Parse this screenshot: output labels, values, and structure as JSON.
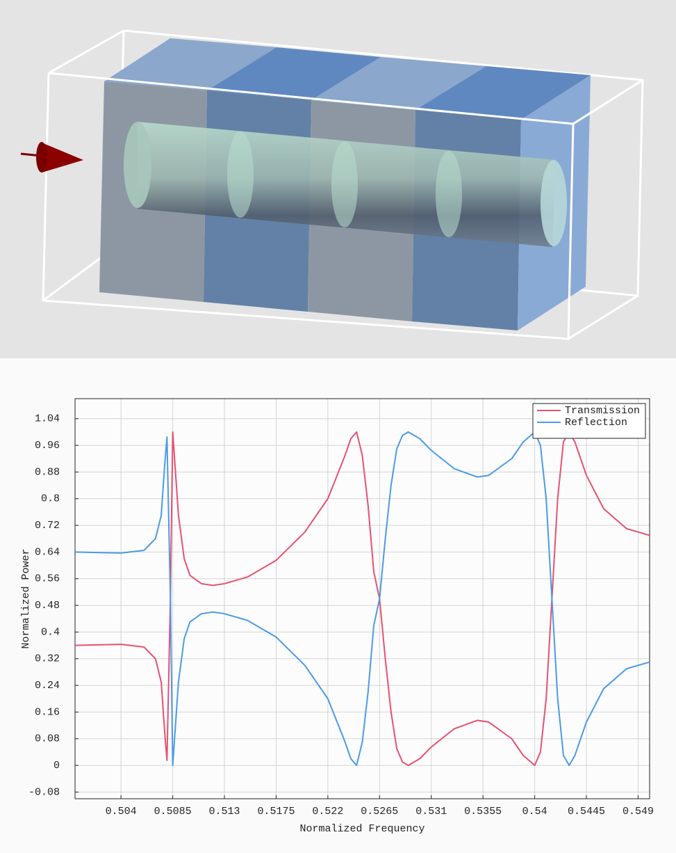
{
  "chart_data": {
    "type": "line",
    "xlabel": "Normalized Frequency",
    "ylabel": "Normalized Power",
    "x": [
      0.5,
      0.504,
      0.506,
      0.507,
      0.5075,
      0.5078,
      0.508,
      0.5083,
      0.5085,
      0.509,
      0.5095,
      0.51,
      0.511,
      0.512,
      0.513,
      0.515,
      0.5175,
      0.52,
      0.522,
      0.5235,
      0.524,
      0.5245,
      0.525,
      0.5255,
      0.526,
      0.5265,
      0.527,
      0.5275,
      0.528,
      0.5285,
      0.529,
      0.53,
      0.531,
      0.533,
      0.535,
      0.536,
      0.538,
      0.539,
      0.54,
      0.5405,
      0.541,
      0.5415,
      0.542,
      0.5425,
      0.543,
      0.5435,
      0.5445,
      0.546,
      0.548,
      0.55
    ],
    "series": [
      {
        "name": "Transmission",
        "color": "#e8506e",
        "values": [
          0.36,
          0.363,
          0.355,
          0.32,
          0.25,
          0.1,
          0.015,
          0.5,
          1.0,
          0.75,
          0.62,
          0.57,
          0.545,
          0.54,
          0.545,
          0.565,
          0.615,
          0.7,
          0.8,
          0.93,
          0.98,
          1.0,
          0.93,
          0.78,
          0.58,
          0.5,
          0.32,
          0.16,
          0.05,
          0.01,
          0.0,
          0.02,
          0.055,
          0.11,
          0.135,
          0.13,
          0.08,
          0.03,
          0.0,
          0.04,
          0.2,
          0.5,
          0.8,
          0.97,
          1.0,
          0.97,
          0.87,
          0.77,
          0.71,
          0.69
        ]
      },
      {
        "name": "Reflection",
        "color": "#4a9ae8",
        "values": [
          0.64,
          0.637,
          0.645,
          0.68,
          0.75,
          0.9,
          0.985,
          0.5,
          0.0,
          0.25,
          0.38,
          0.43,
          0.455,
          0.46,
          0.455,
          0.435,
          0.385,
          0.3,
          0.2,
          0.07,
          0.02,
          0.0,
          0.07,
          0.22,
          0.42,
          0.5,
          0.68,
          0.84,
          0.95,
          0.99,
          1.0,
          0.98,
          0.945,
          0.89,
          0.865,
          0.87,
          0.92,
          0.97,
          1.0,
          0.96,
          0.8,
          0.5,
          0.2,
          0.03,
          0.0,
          0.03,
          0.13,
          0.23,
          0.29,
          0.31
        ]
      }
    ],
    "xlim": [
      0.5,
      0.55
    ],
    "xticks": [
      0.504,
      0.5085,
      0.513,
      0.5175,
      0.522,
      0.5265,
      0.531,
      0.5355,
      0.54,
      0.5445,
      0.549
    ],
    "ylim": [
      -0.1,
      1.1
    ],
    "yticks": [
      -0.08,
      0,
      0.08,
      0.16,
      0.24,
      0.32,
      0.4,
      0.48,
      0.56,
      0.64,
      0.72,
      0.8,
      0.88,
      0.96,
      1.04
    ],
    "grid": true,
    "legend": "upper right"
  }
}
